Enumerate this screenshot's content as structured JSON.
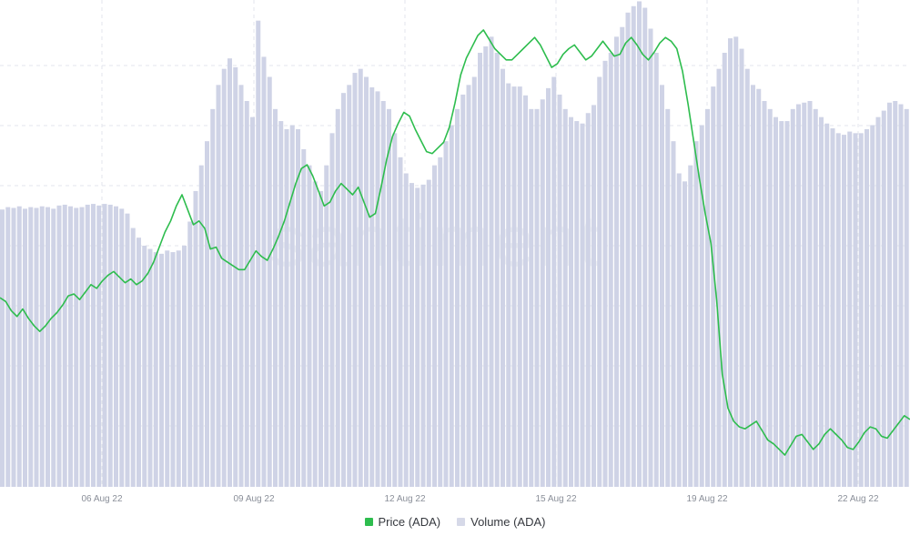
{
  "watermark": "santiment",
  "colors": {
    "price": "#2ebd4e",
    "volume": "#cfd3e6",
    "grid": "#e3e6ec"
  },
  "legend": {
    "price_label": "Price (ADA)",
    "volume_label": "Volume (ADA)"
  },
  "chart_data": {
    "type": "line",
    "x_tick_labels": [
      "06 Aug 22",
      "09 Aug 22",
      "12 Aug 22",
      "15 Aug 22",
      "19 Aug 22",
      "22 Aug 22"
    ],
    "grid": true,
    "legend_position": "bottom-center",
    "series": [
      {
        "name": "Price (ADA)",
        "kind": "line",
        "values": [
          0.521,
          0.519,
          0.514,
          0.511,
          0.515,
          0.51,
          0.506,
          0.503,
          0.506,
          0.51,
          0.513,
          0.517,
          0.522,
          0.523,
          0.52,
          0.524,
          0.528,
          0.526,
          0.53,
          0.533,
          0.535,
          0.532,
          0.529,
          0.531,
          0.528,
          0.53,
          0.534,
          0.54,
          0.548,
          0.556,
          0.562,
          0.57,
          0.576,
          0.568,
          0.56,
          0.562,
          0.558,
          0.547,
          0.548,
          0.542,
          0.54,
          0.538,
          0.536,
          0.536,
          0.541,
          0.546,
          0.543,
          0.541,
          0.547,
          0.554,
          0.562,
          0.572,
          0.582,
          0.59,
          0.592,
          0.586,
          0.578,
          0.57,
          0.572,
          0.578,
          0.582,
          0.579,
          0.576,
          0.58,
          0.572,
          0.564,
          0.566,
          0.58,
          0.595,
          0.607,
          0.614,
          0.62,
          0.618,
          0.611,
          0.605,
          0.599,
          0.598,
          0.601,
          0.604,
          0.612,
          0.625,
          0.64,
          0.649,
          0.655,
          0.661,
          0.664,
          0.659,
          0.654,
          0.651,
          0.648,
          0.648,
          0.651,
          0.654,
          0.657,
          0.66,
          0.656,
          0.65,
          0.644,
          0.646,
          0.651,
          0.654,
          0.656,
          0.652,
          0.648,
          0.65,
          0.654,
          0.658,
          0.654,
          0.65,
          0.651,
          0.657,
          0.66,
          0.656,
          0.651,
          0.648,
          0.652,
          0.657,
          0.66,
          0.658,
          0.654,
          0.642,
          0.624,
          0.604,
          0.584,
          0.566,
          0.55,
          0.52,
          0.48,
          0.462,
          0.455,
          0.452,
          0.451,
          0.453,
          0.455,
          0.45,
          0.445,
          0.443,
          0.44,
          0.437,
          0.442,
          0.447,
          0.448,
          0.444,
          0.44,
          0.443,
          0.448,
          0.451,
          0.448,
          0.445,
          0.441,
          0.44,
          0.444,
          0.449,
          0.452,
          0.451,
          0.447,
          0.446,
          0.45,
          0.454,
          0.458,
          0.456
        ]
      },
      {
        "name": "Volume (ADA)",
        "kind": "area",
        "values": [
          345,
          348,
          347,
          349,
          346,
          348,
          347,
          349,
          348,
          346,
          350,
          351,
          349,
          347,
          348,
          351,
          352,
          350,
          352,
          351,
          349,
          346,
          340,
          322,
          310,
          300,
          296,
          292,
          290,
          294,
          292,
          294,
          300,
          330,
          368,
          400,
          430,
          470,
          500,
          520,
          533,
          522,
          500,
          480,
          460,
          580,
          535,
          510,
          470,
          455,
          445,
          450,
          445,
          420,
          400,
          380,
          368,
          400,
          440,
          470,
          490,
          500,
          515,
          520,
          510,
          497,
          492,
          480,
          470,
          440,
          410,
          390,
          378,
          372,
          376,
          382,
          400,
          410,
          430,
          450,
          470,
          488,
          500,
          510,
          540,
          548,
          560,
          540,
          520,
          502,
          498,
          498,
          487,
          470,
          470,
          482,
          496,
          510,
          488,
          470,
          460,
          455,
          452,
          465,
          475,
          510,
          530,
          540,
          560,
          572,
          590,
          598,
          604,
          596,
          570,
          540,
          500,
          470,
          430,
          390,
          380,
          400,
          430,
          450,
          470,
          498,
          520,
          540,
          558,
          560,
          545,
          520,
          500,
          495,
          480,
          470,
          460,
          455,
          455,
          470,
          476,
          478,
          480,
          470,
          460,
          452,
          446,
          440,
          438,
          442,
          440,
          440,
          445,
          450,
          460,
          468,
          478,
          480,
          476,
          470
        ]
      }
    ]
  }
}
